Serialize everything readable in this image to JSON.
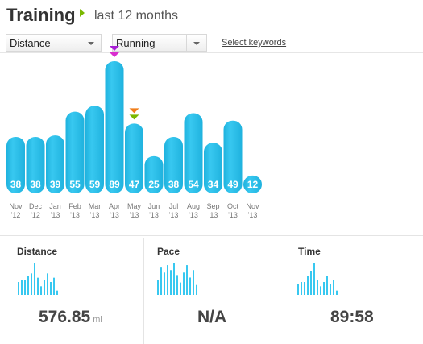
{
  "header": {
    "title": "Training",
    "subtitle": "last 12 months"
  },
  "filters": {
    "metric": "Distance",
    "activity": "Running",
    "select_keywords": "Select keywords"
  },
  "colors": {
    "bar": "#38c8f0",
    "bar_dark": "#1fb2de",
    "marker_top_a": "#a91fd6",
    "marker_top_b": "#d92fcf",
    "marker_mid_a": "#f07d1a",
    "marker_mid_b": "#7ab800",
    "accent_arrow": "#7ab800"
  },
  "chart_data": {
    "type": "bar",
    "categories": [
      "Nov '12",
      "Dec '12",
      "Jan '13",
      "Feb '13",
      "Mar '13",
      "Apr '13",
      "May '13",
      "Jun '13",
      "Jul '13",
      "Aug '13",
      "Sep '13",
      "Oct '13",
      "Nov '13"
    ],
    "tick_months": [
      "Nov",
      "Dec",
      "Jan",
      "Feb",
      "Mar",
      "Apr",
      "May",
      "Jun",
      "Jul",
      "Aug",
      "Sep",
      "Oct",
      "Nov"
    ],
    "tick_years": [
      "'12",
      "'12",
      "'13",
      "'13",
      "'13",
      "'13",
      "'13",
      "'13",
      "'13",
      "'13",
      "'13",
      "'13",
      "'13"
    ],
    "values": [
      38,
      38,
      39,
      55,
      59,
      89,
      47,
      25,
      38,
      54,
      34,
      49,
      12
    ],
    "labels": [
      "38",
      "38",
      "39",
      "55",
      "59",
      "89",
      "47",
      "25",
      "38",
      "54",
      "34",
      "49",
      "12"
    ],
    "markers": [
      {
        "category": "Apr '13",
        "colors": [
          "#a91fd6",
          "#d92fcf"
        ]
      },
      {
        "category": "May '13",
        "colors": [
          "#f07d1a",
          "#7ab800"
        ]
      }
    ],
    "ylim": [
      0,
      89
    ],
    "grid": false
  },
  "stats": [
    {
      "label": "Distance",
      "value": "576.85",
      "unit": "mi",
      "spark": [
        6,
        7,
        7,
        9,
        10,
        15,
        8,
        4,
        7,
        10,
        6,
        8,
        2
      ]
    },
    {
      "label": "Pace",
      "value": "N/A",
      "unit": "",
      "spark": [
        6,
        11,
        9,
        12,
        10,
        13,
        8,
        5,
        9,
        12,
        7,
        10,
        4
      ]
    },
    {
      "label": "Time",
      "value": "89:58",
      "unit": "",
      "spark": [
        5,
        6,
        6,
        9,
        11,
        15,
        7,
        4,
        6,
        9,
        5,
        7,
        2
      ]
    }
  ]
}
